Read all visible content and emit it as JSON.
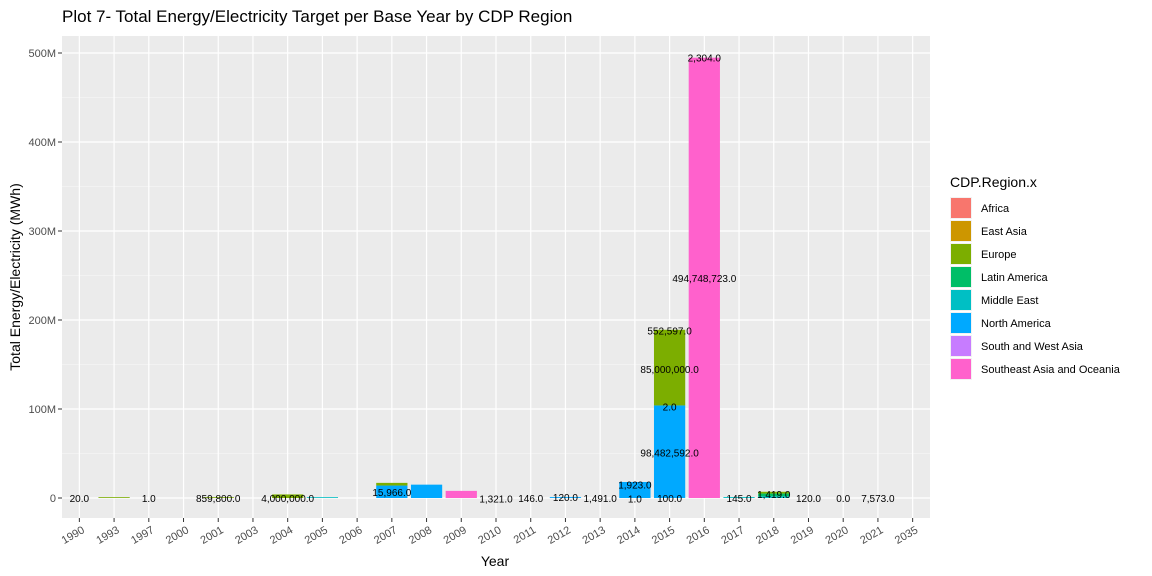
{
  "chart_data": {
    "type": "bar",
    "stacked": true,
    "title": "Plot 7- Total Energy/Electricity Target per Base Year by CDP Region",
    "xlabel": "Year",
    "ylabel": "Total Energy/Electricity (MWh)",
    "ylim": [
      0,
      520000000
    ],
    "yticks": [
      {
        "value": 0,
        "label": "0"
      },
      {
        "value": 100000000,
        "label": "100M"
      },
      {
        "value": 200000000,
        "label": "200M"
      },
      {
        "value": 300000000,
        "label": "300M"
      },
      {
        "value": 400000000,
        "label": "400M"
      },
      {
        "value": 500000000,
        "label": "500M"
      }
    ],
    "categories": [
      "1990",
      "1993",
      "1997",
      "2000",
      "2001",
      "2003",
      "2004",
      "2005",
      "2006",
      "2007",
      "2008",
      "2009",
      "2010",
      "2011",
      "2012",
      "2013",
      "2014",
      "2015",
      "2016",
      "2017",
      "2018",
      "2019",
      "2020",
      "2021",
      "2035"
    ],
    "legend": {
      "title": "CDP.Region.x",
      "position": "right",
      "entries": [
        {
          "name": "Africa",
          "color": "#F8766D"
        },
        {
          "name": "East Asia",
          "color": "#CD9600"
        },
        {
          "name": "Europe",
          "color": "#7CAE00"
        },
        {
          "name": "Latin America",
          "color": "#00BE67"
        },
        {
          "name": "Middle East",
          "color": "#00BFC4"
        },
        {
          "name": "North America",
          "color": "#00A9FF"
        },
        {
          "name": "South and West Asia",
          "color": "#C77CFF"
        },
        {
          "name": "Southeast Asia and Oceania",
          "color": "#FF61CC"
        }
      ]
    },
    "bars": [
      {
        "category": "1993",
        "region": "Europe",
        "value": 400000
      },
      {
        "category": "2001",
        "region": "Europe",
        "value": 859800
      },
      {
        "category": "2004",
        "region": "Europe",
        "value": 4000000
      },
      {
        "category": "2005",
        "region": "Middle East",
        "value": 600000
      },
      {
        "category": "2007",
        "region": "North America",
        "value": 14000000
      },
      {
        "category": "2007",
        "region": "Europe",
        "value": 3000000
      },
      {
        "category": "2008",
        "region": "North America",
        "value": 15000000
      },
      {
        "category": "2009",
        "region": "Southeast Asia and Oceania",
        "value": 8000000
      },
      {
        "category": "2012",
        "region": "North America",
        "value": 1000000
      },
      {
        "category": "2014",
        "region": "North America",
        "value": 18000000
      },
      {
        "category": "2015",
        "region": "North America",
        "value": 104000000
      },
      {
        "category": "2015",
        "region": "Europe",
        "value": 85000000
      },
      {
        "category": "2016",
        "region": "Southeast Asia and Oceania",
        "value": 494748723
      },
      {
        "category": "2017",
        "region": "Middle East",
        "value": 1000000
      },
      {
        "category": "2018",
        "region": "Middle East",
        "value": 2000000
      },
      {
        "category": "2018",
        "region": "Latin America",
        "value": 3000000
      },
      {
        "category": "2018",
        "region": "Europe",
        "value": 2000000
      }
    ],
    "data_labels": [
      {
        "category": "1990",
        "y": 0,
        "text": "20.0"
      },
      {
        "category": "1997",
        "y": 0,
        "text": "1.0"
      },
      {
        "category": "2001",
        "y": 0,
        "text": "859,800.0"
      },
      {
        "category": "2004",
        "y": 0,
        "text": "4,000,000.0"
      },
      {
        "category": "2007",
        "y": 7000000,
        "text": "15,966.0"
      },
      {
        "category": "2010",
        "y": -300000,
        "text": "1,321.0"
      },
      {
        "category": "2011",
        "y": 0,
        "text": "146.0"
      },
      {
        "category": "2012",
        "y": 1000000,
        "text": "120.0"
      },
      {
        "category": "2013",
        "y": 0,
        "text": "1,491.0"
      },
      {
        "category": "2014",
        "y": 15000000,
        "text": "1,923.0"
      },
      {
        "category": "2014",
        "y": -300000,
        "text": "1.0"
      },
      {
        "category": "2015",
        "y": 0,
        "text": "100.0"
      },
      {
        "category": "2015",
        "y": 51000000,
        "text": "98,482,592.0"
      },
      {
        "category": "2015",
        "y": 103000000,
        "text": "2.0"
      },
      {
        "category": "2015",
        "y": 145000000,
        "text": "85,000,000.0"
      },
      {
        "category": "2015",
        "y": 188000000,
        "text": "552,597.0"
      },
      {
        "category": "2016",
        "y": 247000000,
        "text": "494,748,723.0"
      },
      {
        "category": "2016",
        "y": 495000000,
        "text": "2,304.0"
      },
      {
        "category": "2017",
        "y": 0,
        "text": "145.0"
      },
      {
        "category": "2018",
        "y": 4500000,
        "text": "1,419.0"
      },
      {
        "category": "2019",
        "y": 0,
        "text": "120.0"
      },
      {
        "category": "2020",
        "y": 0,
        "text": "0.0"
      },
      {
        "category": "2021",
        "y": 0,
        "text": "7,573.0"
      }
    ]
  }
}
